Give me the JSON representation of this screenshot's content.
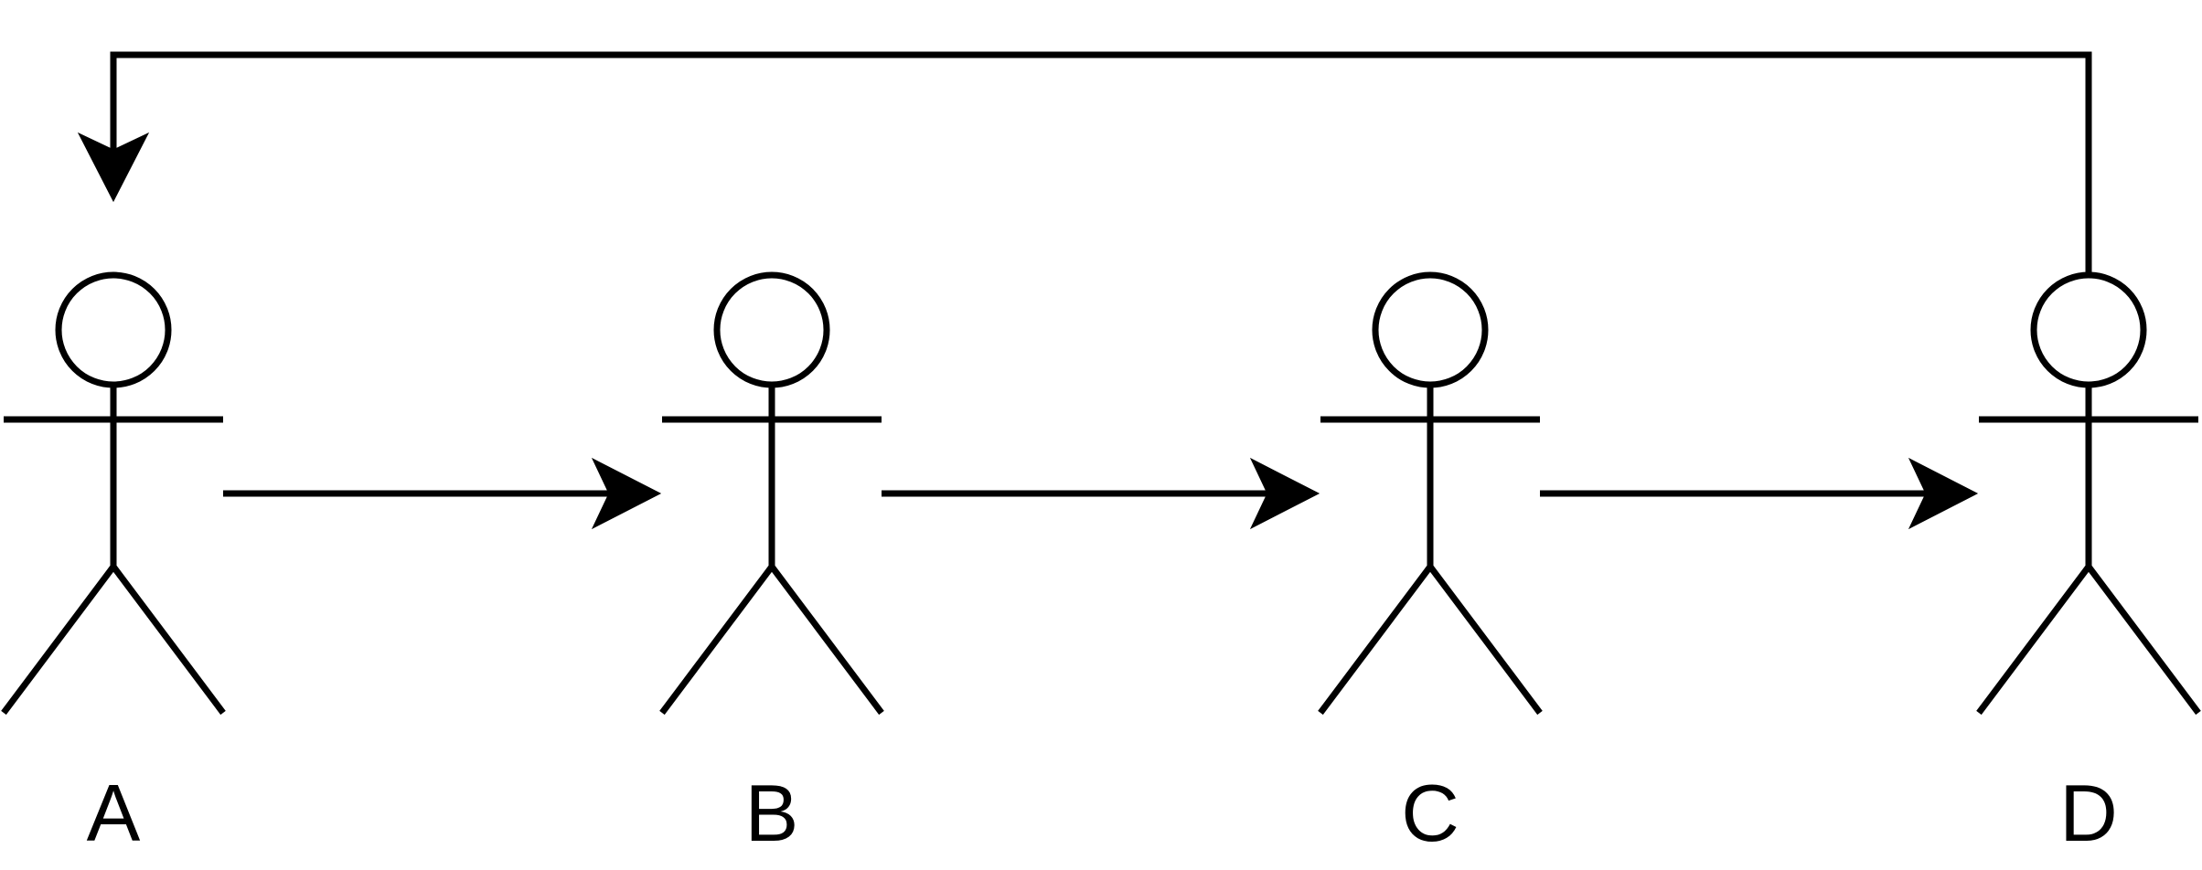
{
  "diagram": {
    "actors": [
      {
        "id": "A",
        "label": "A"
      },
      {
        "id": "B",
        "label": "B"
      },
      {
        "id": "C",
        "label": "C"
      },
      {
        "id": "D",
        "label": "D"
      }
    ],
    "connections": [
      {
        "from": "A",
        "to": "B"
      },
      {
        "from": "B",
        "to": "C"
      },
      {
        "from": "C",
        "to": "D"
      },
      {
        "from": "D",
        "to": "A"
      }
    ],
    "colors": {
      "stroke": "#000000",
      "background": "#ffffff"
    }
  }
}
